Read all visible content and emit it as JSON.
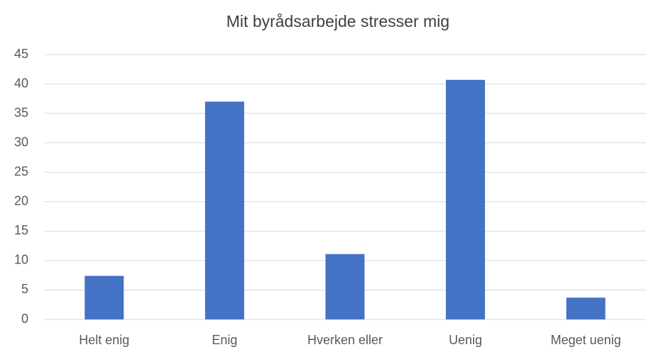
{
  "chart_data": {
    "type": "bar",
    "title": "Mit byrådsarbejde stresser mig",
    "categories": [
      "Helt enig",
      "Enig",
      "Hverken eller",
      "Uenig",
      "Meget uenig"
    ],
    "values": [
      7.4,
      37,
      11.1,
      40.7,
      3.7
    ],
    "color": "#4472c4",
    "ylim": [
      0,
      45
    ],
    "yticks": [
      0,
      5,
      10,
      15,
      20,
      25,
      30,
      35,
      40,
      45
    ],
    "grid": true
  }
}
